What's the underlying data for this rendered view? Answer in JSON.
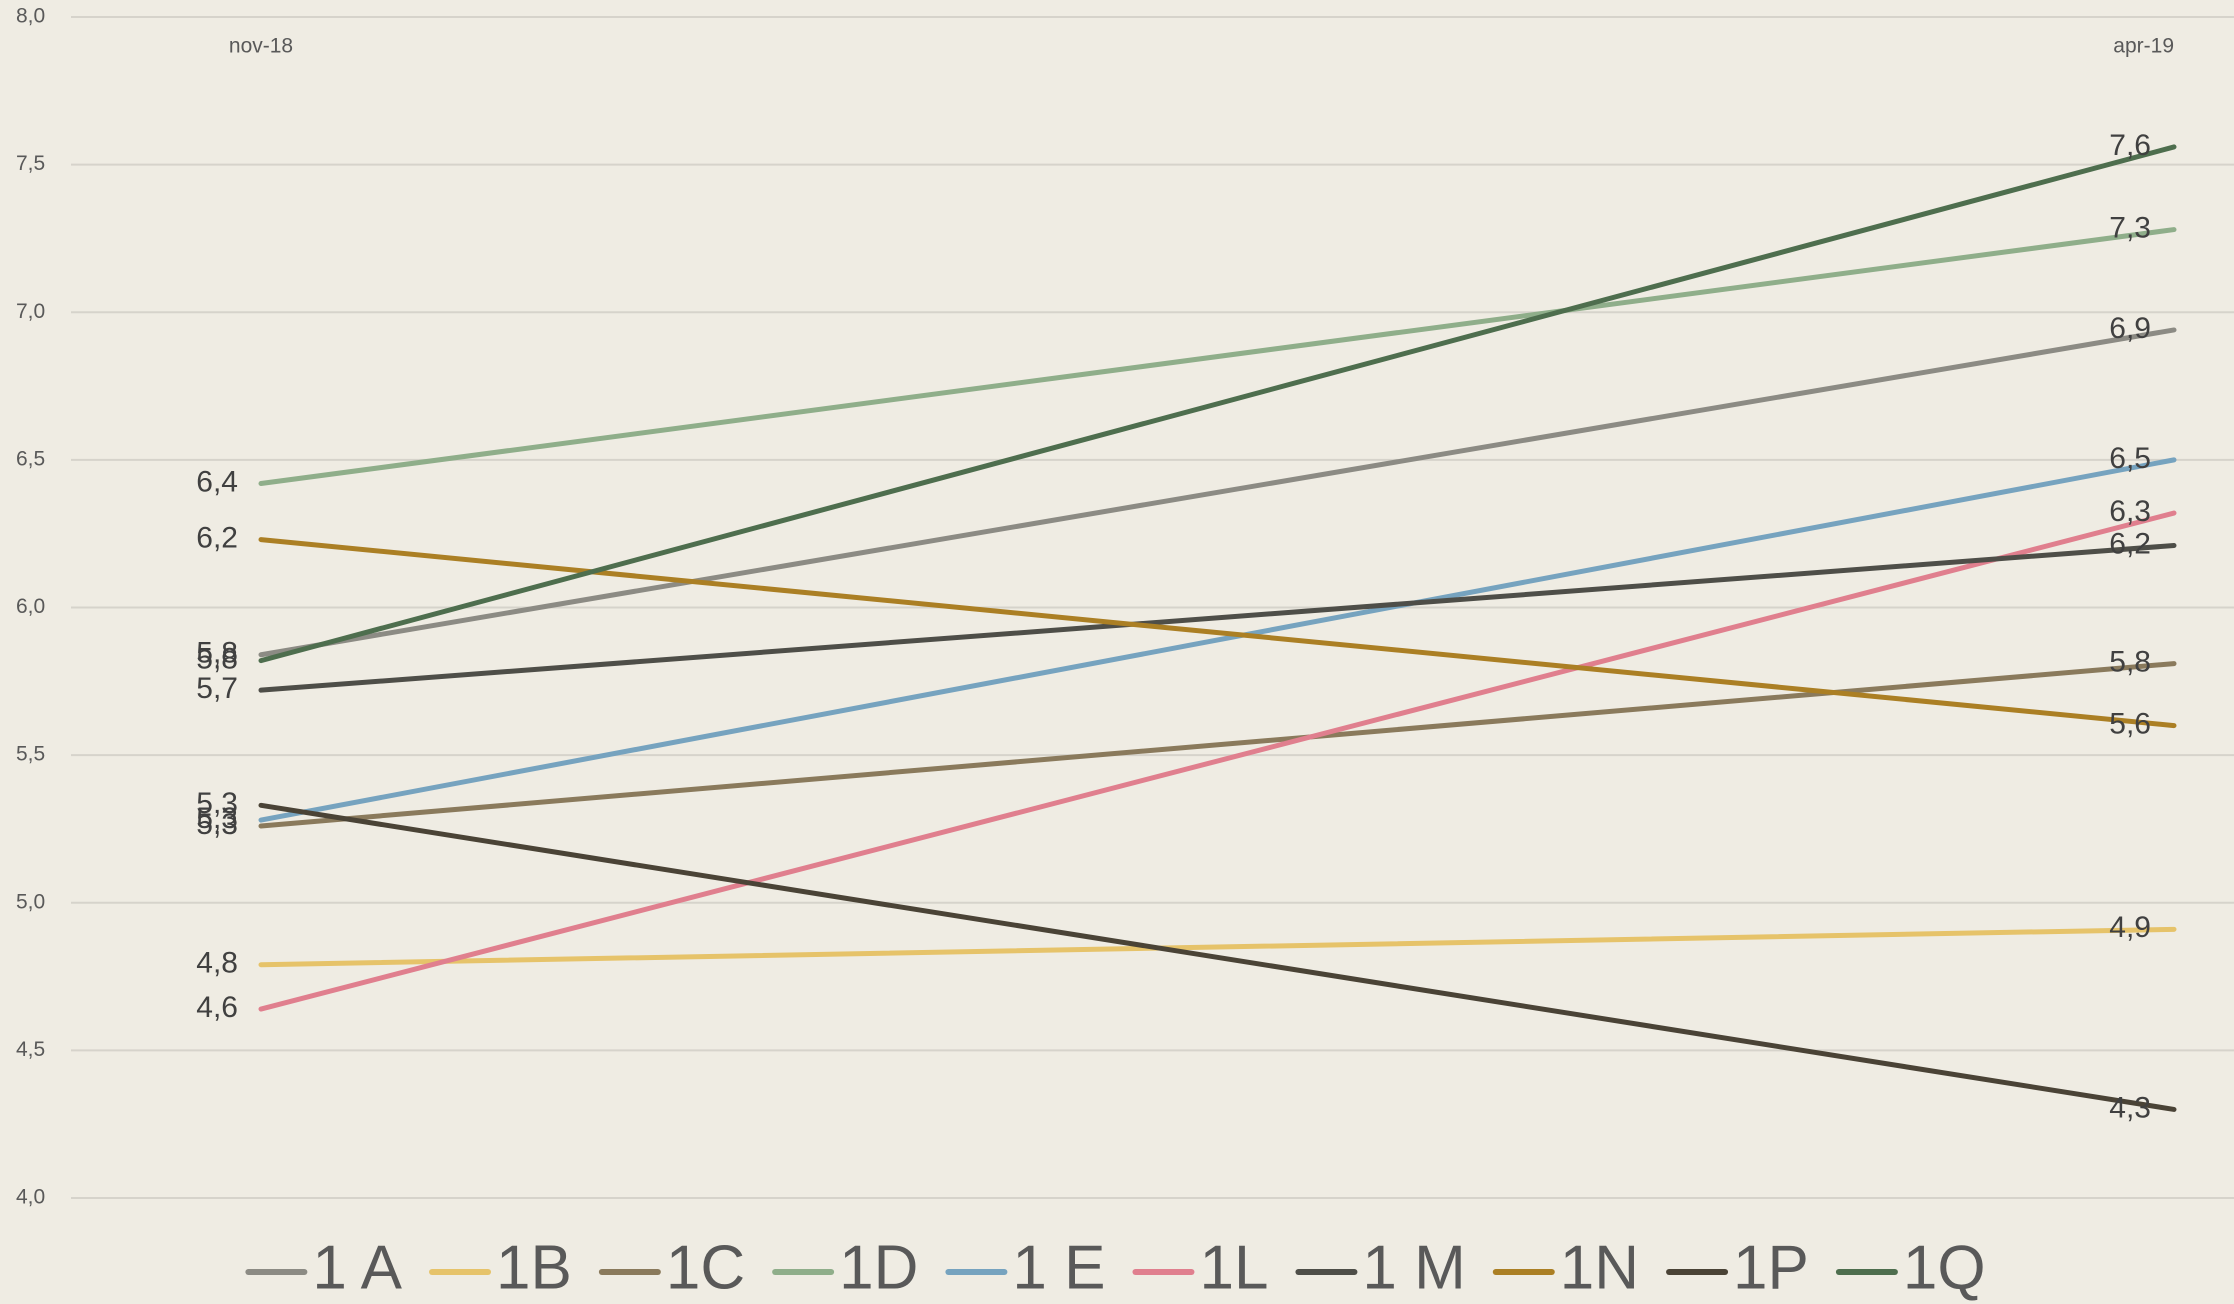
{
  "chart_data": {
    "type": "line",
    "categories": [
      "nov-18",
      "apr-19"
    ],
    "series": [
      {
        "name": "1 A",
        "color": "#8c8b84",
        "values": [
          5.84,
          6.94
        ],
        "value_labels": [
          "5,8",
          "6,9"
        ]
      },
      {
        "name": "1B",
        "color": "#e6c36a",
        "values": [
          4.79,
          4.91
        ],
        "value_labels": [
          "4,8",
          "4,9"
        ]
      },
      {
        "name": "1C",
        "color": "#8a7a5c",
        "values": [
          5.26,
          5.81
        ],
        "value_labels": [
          "5,3",
          "5,8"
        ]
      },
      {
        "name": "1D",
        "color": "#8fae8a",
        "values": [
          6.42,
          7.28
        ],
        "value_labels": [
          "6,4",
          "7,3"
        ]
      },
      {
        "name": "1 E",
        "color": "#76a3bf",
        "values": [
          5.28,
          6.5
        ],
        "value_labels": [
          "5,3",
          "6,5"
        ]
      },
      {
        "name": "1L",
        "color": "#e07f8e",
        "values": [
          4.64,
          6.32
        ],
        "value_labels": [
          "4,6",
          "6,3"
        ]
      },
      {
        "name": "1 M",
        "color": "#4e4e48",
        "values": [
          5.72,
          6.21
        ],
        "value_labels": [
          "5,7",
          "6,2"
        ]
      },
      {
        "name": "1N",
        "color": "#ab7f24",
        "values": [
          6.23,
          5.6
        ],
        "value_labels": [
          "6,2",
          "5,6"
        ]
      },
      {
        "name": "1P",
        "color": "#4a4336",
        "values": [
          5.33,
          4.3
        ],
        "value_labels": [
          "5,3",
          "4,3"
        ]
      },
      {
        "name": "1Q",
        "color": "#4e6e4e",
        "values": [
          5.82,
          7.56
        ],
        "value_labels": [
          "5,8",
          "7,6"
        ]
      }
    ],
    "ylim": [
      4,
      8
    ],
    "yticks": [
      {
        "value": 4,
        "label": "4,0"
      },
      {
        "value": 4.5,
        "label": "4,5"
      },
      {
        "value": 5,
        "label": "5,0"
      },
      {
        "value": 5.5,
        "label": "5,5"
      },
      {
        "value": 6,
        "label": "6,0"
      },
      {
        "value": 6.5,
        "label": "6,5"
      },
      {
        "value": 7,
        "label": "7,0"
      },
      {
        "value": 7.5,
        "label": "7,5"
      },
      {
        "value": 8,
        "label": "8,0"
      }
    ],
    "grid": true,
    "legend": "bottom"
  }
}
